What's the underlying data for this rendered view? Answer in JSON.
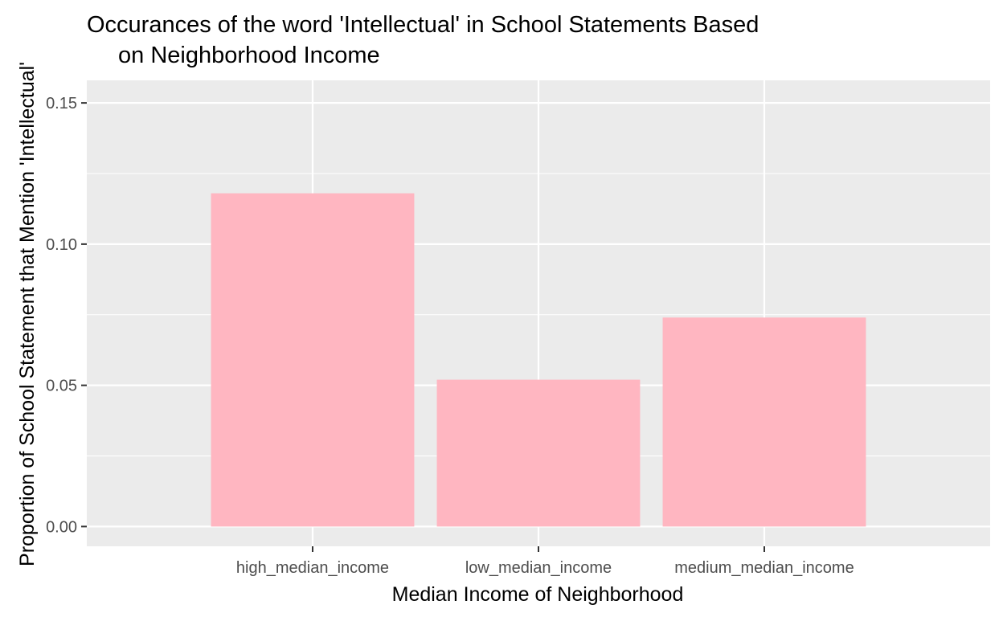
{
  "chart_data": {
    "type": "bar",
    "title_line1": "Occurances of the word 'Intellectual' in School Statements Based",
    "title_line2": "on Neighborhood Income",
    "xlabel": "Median Income of Neighborhood",
    "ylabel": "Proportion of School Statement that Mention 'Intellectual'",
    "categories": [
      "high_median_income",
      "low_median_income",
      "medium_median_income"
    ],
    "values": [
      0.118,
      0.052,
      0.074
    ],
    "yticks": [
      0.0,
      0.05,
      0.1,
      0.15
    ],
    "ytick_labels": [
      "0.00",
      "0.05",
      "0.10",
      "0.15"
    ],
    "ylim": [
      -0.007,
      0.158
    ],
    "grid": true,
    "legend": "none",
    "colors": {
      "bar": "#FFB6C1",
      "panel": "#EBEBEB",
      "grid": "#FFFFFF",
      "text": "#000000",
      "tick_text": "#4D4D4D",
      "tick_mark": "#333333"
    }
  }
}
